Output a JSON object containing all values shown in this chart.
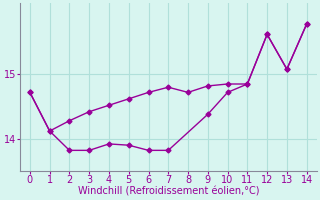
{
  "line1_x": [
    0,
    1,
    2,
    3,
    4,
    5,
    6,
    7,
    8,
    9,
    10,
    11,
    12,
    13,
    14
  ],
  "line1_y": [
    14.72,
    14.12,
    14.28,
    14.42,
    14.52,
    14.62,
    14.72,
    14.8,
    14.72,
    14.82,
    14.85,
    14.85,
    15.62,
    15.08,
    15.78
  ],
  "line2_x": [
    0,
    1,
    2,
    3,
    4,
    5,
    6,
    7,
    9,
    10,
    11,
    12,
    13,
    14
  ],
  "line2_y": [
    14.72,
    14.12,
    13.82,
    13.82,
    13.92,
    13.9,
    13.82,
    13.82,
    14.38,
    14.72,
    14.85,
    15.62,
    15.08,
    15.78
  ],
  "color": "#990099",
  "bg_color": "#d8f5f0",
  "grid_color": "#b0e0da",
  "xlabel": "Windchill (Refroidissement éolien,°C)",
  "yticks": [
    14,
    15
  ],
  "xticks": [
    0,
    1,
    2,
    3,
    4,
    5,
    6,
    7,
    8,
    9,
    10,
    11,
    12,
    13,
    14
  ],
  "ylim": [
    13.5,
    16.1
  ],
  "xlim": [
    -0.5,
    14.5
  ],
  "figsize": [
    3.2,
    2.0
  ],
  "dpi": 100
}
